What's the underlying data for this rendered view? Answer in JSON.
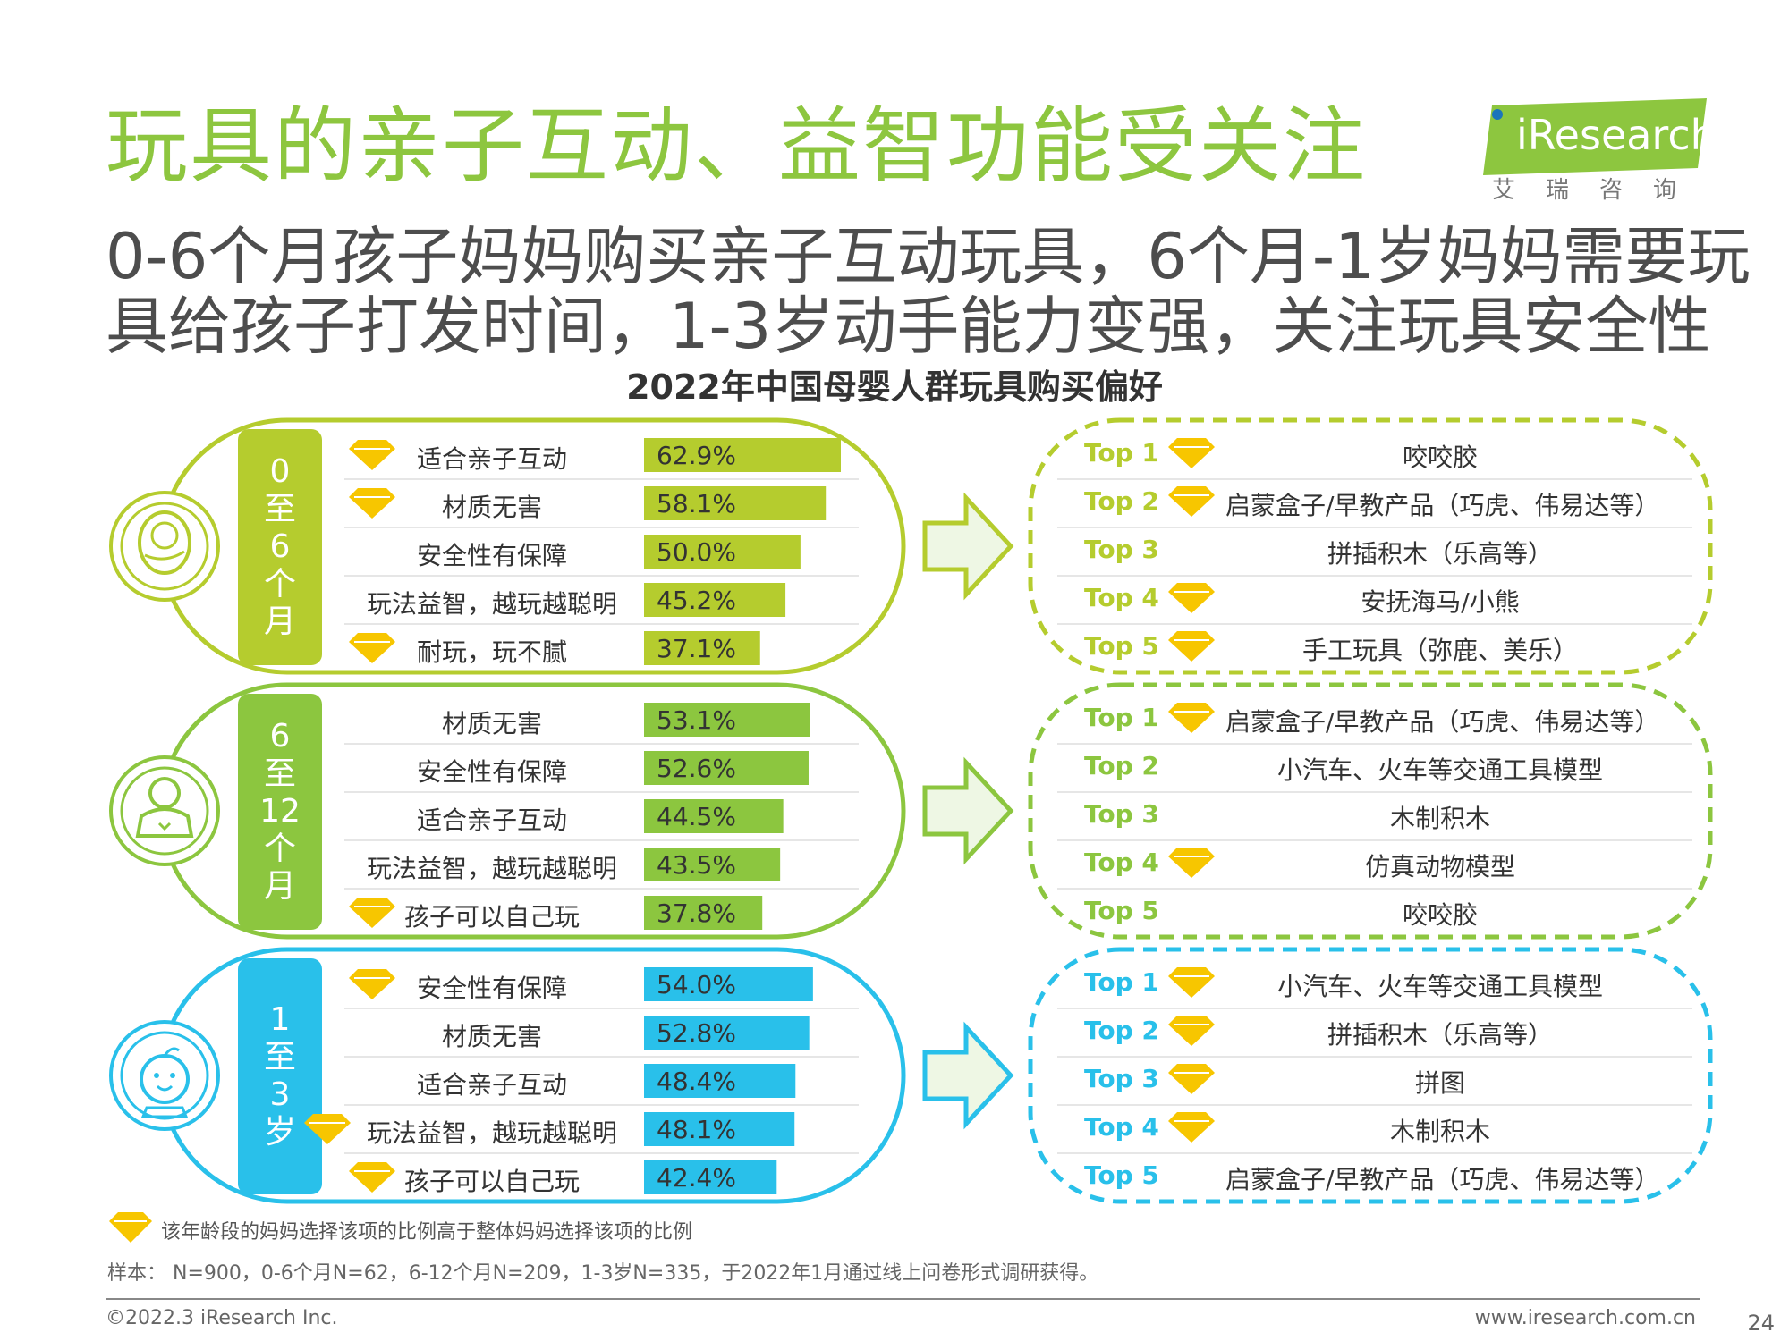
{
  "title": "玩具的亲子互动、益智功能受关注",
  "subtitle_lines": [
    "0-6个月孩子妈妈购买亲子互动玩具，6个月-1岁妈妈需要玩",
    "具给孩子打发时间，1-3岁动手能力变强，关注玩具安全性"
  ],
  "logo": {
    "text": "iResearch",
    "sub": "艾瑞咨询"
  },
  "colors": {
    "green_dark": "#8dc63f",
    "green_olive": "#b5cc2e",
    "green_mid": "#8cc63f",
    "blue": "#29c0ea",
    "gold": "#f7c600"
  },
  "chart_data": {
    "type": "bar",
    "title": "2022年中国母婴人群玩具购买偏好",
    "groups": [
      {
        "age": "0至6个月",
        "age_chars": [
          "0",
          "至",
          "6",
          "个",
          "月"
        ],
        "color": "#b5cc2e",
        "icon": "swaddled-baby-icon",
        "categories": [
          "适合亲子互动",
          "材质无害",
          "安全性有保障",
          "玩法益智，越玩越聪明",
          "耐玩，玩不腻"
        ],
        "values": [
          62.9,
          58.1,
          50.0,
          45.2,
          37.1
        ],
        "labels": [
          "62.9%",
          "58.1%",
          "50.0%",
          "45.2%",
          "37.1%"
        ],
        "highlight": [
          true,
          true,
          false,
          false,
          true
        ],
        "top5": [
          {
            "rank": "Top 1",
            "item": "咬咬胶",
            "highlight": true
          },
          {
            "rank": "Top 2",
            "item": "启蒙盒子/早教产品（巧虎、伟易达等）",
            "highlight": true
          },
          {
            "rank": "Top 3",
            "item": "拼插积木（乐高等）",
            "highlight": false
          },
          {
            "rank": "Top 4",
            "item": "安抚海马/小熊",
            "highlight": true
          },
          {
            "rank": "Top 5",
            "item": "手工玩具（弥鹿、美乐）",
            "highlight": true
          }
        ]
      },
      {
        "age": "6至12个月",
        "age_chars": [
          "6",
          "至",
          "12",
          "个",
          "月"
        ],
        "color": "#8cc63f",
        "icon": "sitting-baby-icon",
        "categories": [
          "材质无害",
          "安全性有保障",
          "适合亲子互动",
          "玩法益智，越玩越聪明",
          "孩子可以自己玩"
        ],
        "values": [
          53.1,
          52.6,
          44.5,
          43.5,
          37.8
        ],
        "labels": [
          "53.1%",
          "52.6%",
          "44.5%",
          "43.5%",
          "37.8%"
        ],
        "highlight": [
          false,
          false,
          false,
          false,
          true
        ],
        "top5": [
          {
            "rank": "Top 1",
            "item": "启蒙盒子/早教产品（巧虎、伟易达等）",
            "highlight": true
          },
          {
            "rank": "Top 2",
            "item": "小汽车、火车等交通工具模型",
            "highlight": false
          },
          {
            "rank": "Top 3",
            "item": "木制积木",
            "highlight": false
          },
          {
            "rank": "Top 4",
            "item": "仿真动物模型",
            "highlight": true
          },
          {
            "rank": "Top 5",
            "item": "咬咬胶",
            "highlight": false
          }
        ]
      },
      {
        "age": "1至3岁",
        "age_chars": [
          "1",
          "至",
          "3",
          "岁"
        ],
        "color": "#29c0ea",
        "icon": "toddler-face-icon",
        "categories": [
          "安全性有保障",
          "材质无害",
          "适合亲子互动",
          "玩法益智，越玩越聪明",
          "孩子可以自己玩"
        ],
        "values": [
          54.0,
          52.8,
          48.4,
          48.1,
          42.4
        ],
        "labels": [
          "54.0%",
          "52.8%",
          "48.4%",
          "48.1%",
          "42.4%"
        ],
        "highlight": [
          true,
          false,
          false,
          true,
          true
        ],
        "top5": [
          {
            "rank": "Top 1",
            "item": "小汽车、火车等交通工具模型",
            "highlight": true
          },
          {
            "rank": "Top 2",
            "item": "拼插积木（乐高等）",
            "highlight": true
          },
          {
            "rank": "Top 3",
            "item": "拼图",
            "highlight": true
          },
          {
            "rank": "Top 4",
            "item": "木制积木",
            "highlight": true
          },
          {
            "rank": "Top 5",
            "item": "启蒙盒子/早教产品（巧虎、伟易达等）",
            "highlight": false
          }
        ]
      }
    ]
  },
  "legend_note": "该年龄段的妈妈选择该项的比例高于整体妈妈选择该项的比例",
  "sample_note": "样本： N=900，0-6个月N=62，6-12个月N=209，1-3岁N=335，于2022年1月通过线上问卷形式调研获得。",
  "footer": {
    "copyright": "©2022.3 iResearch Inc.",
    "website": "www.iresearch.com.cn",
    "page": "24"
  }
}
